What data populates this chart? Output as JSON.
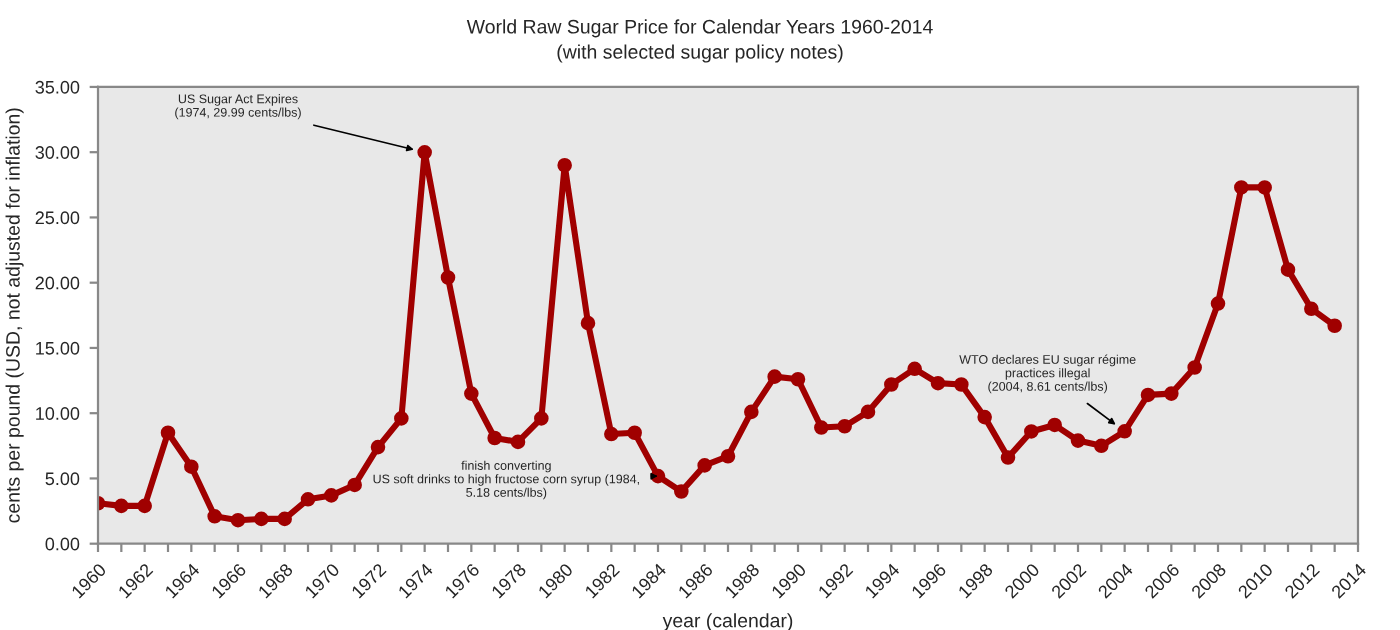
{
  "chart_data": {
    "type": "line",
    "title": "World Raw Sugar Price for Calendar Years 1960-2014",
    "subtitle": "(with selected sugar policy notes)",
    "xlabel": "year (calendar)",
    "ylabel": "cents per pound (USD, not adjusted for inflation)",
    "x": [
      1960,
      1961,
      1962,
      1963,
      1964,
      1965,
      1966,
      1967,
      1968,
      1969,
      1970,
      1971,
      1972,
      1973,
      1974,
      1975,
      1976,
      1977,
      1978,
      1979,
      1980,
      1981,
      1982,
      1983,
      1984,
      1985,
      1986,
      1987,
      1988,
      1989,
      1990,
      1991,
      1992,
      1993,
      1994,
      1995,
      1996,
      1997,
      1998,
      1999,
      2000,
      2001,
      2002,
      2003,
      2004,
      2005,
      2006,
      2007,
      2008,
      2009,
      2010,
      2011,
      2012,
      2013
    ],
    "series": [
      {
        "color": "#a00000",
        "values": [
          3.1,
          2.9,
          2.9,
          8.5,
          5.9,
          2.1,
          1.8,
          1.9,
          1.9,
          3.4,
          3.7,
          4.5,
          7.4,
          9.6,
          29.99,
          20.4,
          11.5,
          8.1,
          7.8,
          9.6,
          29.0,
          16.9,
          8.4,
          8.5,
          5.18,
          4.0,
          6.0,
          6.7,
          10.1,
          12.8,
          12.6,
          8.9,
          9.0,
          10.1,
          12.2,
          13.4,
          12.3,
          12.2,
          9.7,
          6.6,
          8.6,
          9.1,
          7.9,
          7.5,
          8.61,
          11.4,
          11.5,
          13.5,
          18.4,
          27.3,
          27.3,
          21.0,
          18.0,
          16.7
        ]
      }
    ],
    "marker": "circle",
    "line_style": "solid",
    "grid": false,
    "legend": false,
    "xlim": [
      1960,
      2014
    ],
    "xticks": [
      1960,
      {
        "value": 1961,
        "label": null
      },
      1962,
      {
        "value": 1963,
        "label": null
      },
      1964,
      {
        "value": 1965,
        "label": null
      },
      1966,
      {
        "value": 1967,
        "label": null
      },
      1968,
      {
        "value": 1969,
        "label": null
      },
      1970,
      {
        "value": 1971,
        "label": null
      },
      1972,
      {
        "value": 1973,
        "label": null
      },
      1974,
      {
        "value": 1975,
        "label": null
      },
      1976,
      {
        "value": 1977,
        "label": null
      },
      1978,
      {
        "value": 1979,
        "label": null
      },
      1980,
      {
        "value": 1981,
        "label": null
      },
      1982,
      {
        "value": 1983,
        "label": null
      },
      1984,
      {
        "value": 1985,
        "label": null
      },
      1986,
      {
        "value": 1987,
        "label": null
      },
      1988,
      {
        "value": 1989,
        "label": null
      },
      1990,
      {
        "value": 1991,
        "label": null
      },
      1992,
      {
        "value": 1993,
        "label": null
      },
      1994,
      {
        "value": 1995,
        "label": null
      },
      1996,
      {
        "value": 1997,
        "label": null
      },
      1998,
      {
        "value": 1999,
        "label": null
      },
      2000,
      {
        "value": 2001,
        "label": null
      },
      2002,
      {
        "value": 2003,
        "label": null
      },
      2004,
      {
        "value": 2005,
        "label": null
      },
      2006,
      {
        "value": 2007,
        "label": null
      },
      2008,
      {
        "value": 2009,
        "label": null
      },
      2010,
      {
        "value": 2011,
        "label": null
      },
      2012,
      {
        "value": 2013,
        "label": null
      },
      2014
    ],
    "ylim": [
      0,
      35
    ],
    "yticks": [
      {
        "value": 0,
        "label": "0.00"
      },
      {
        "value": 5,
        "label": "5.00"
      },
      {
        "value": 10,
        "label": "10.00"
      },
      {
        "value": 15,
        "label": "15.00"
      },
      {
        "value": 20,
        "label": "20.00"
      },
      {
        "value": 25,
        "label": "25.00"
      },
      {
        "value": 30,
        "label": "30.00"
      },
      {
        "value": 35,
        "label": "35.00"
      }
    ],
    "annotations": [
      {
        "text": "US Sugar Act Expires\n(1974, 29.99 cents/lbs)",
        "x": 1974,
        "y": 29.99
      },
      {
        "text": "finish converting\nUS soft drinks to high fructose corn syrup (1984,\n5.18 cents/lbs)",
        "x": 1984,
        "y": 5.18
      },
      {
        "text": "WTO declares EU sugar régime\npractices illegal\n(2004, 8.61 cents/lbs)",
        "x": 2004,
        "y": 8.61
      }
    ]
  }
}
